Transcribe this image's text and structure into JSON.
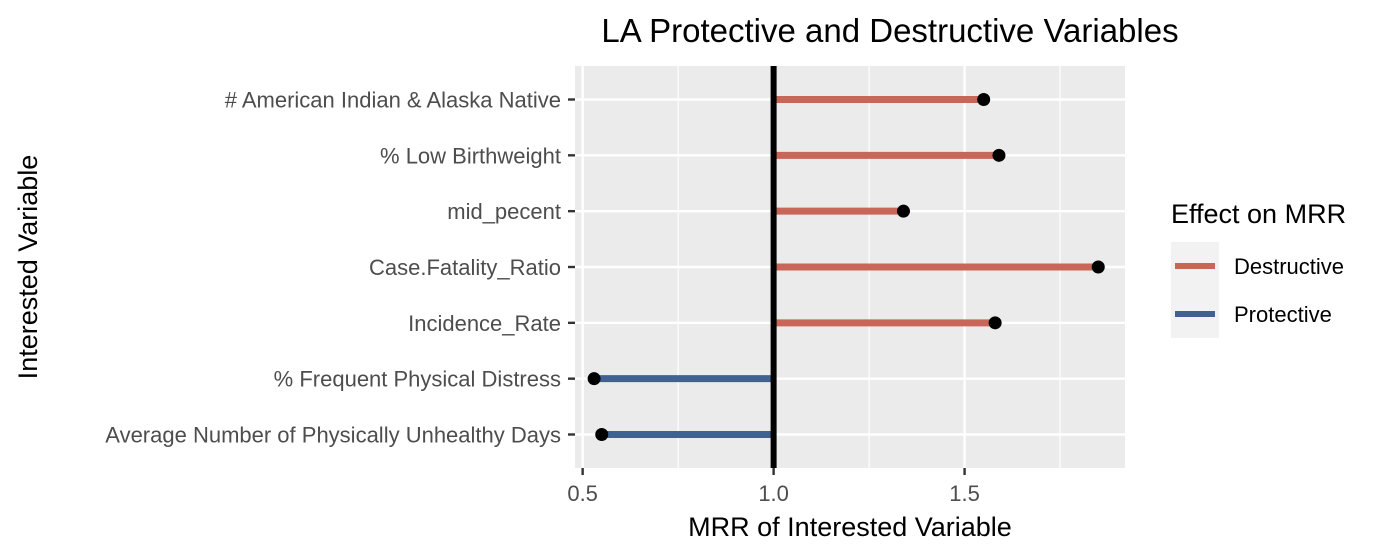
{
  "chart_data": {
    "type": "lollipop",
    "title": "LA Protective and Destructive Variables",
    "xlabel": "MRR of Interested Variable",
    "ylabel": "Interested Variable",
    "xlim": [
      0.48,
      1.92
    ],
    "xticks": [
      0.5,
      1.0,
      1.5
    ],
    "xtick_labels": [
      "0.5",
      "1.0",
      "1.5"
    ],
    "reference_line": 1.0,
    "grid": true,
    "legend": {
      "title": "Effect on MRR",
      "position": "right",
      "entries": [
        {
          "label": "Destructive",
          "color": "#c8665a"
        },
        {
          "label": "Protective",
          "color": "#41628f"
        }
      ]
    },
    "categories": [
      "# American Indian & Alaska Native",
      "% Low Birthweight",
      "mid_pecent",
      "Case.Fatality_Ratio",
      "Incidence_Rate",
      "% Frequent Physical Distress",
      "Average Number of Physically Unhealthy Days"
    ],
    "values": [
      1.55,
      1.59,
      1.34,
      1.85,
      1.58,
      0.53,
      0.55
    ],
    "effects": [
      "Destructive",
      "Destructive",
      "Destructive",
      "Destructive",
      "Destructive",
      "Protective",
      "Protective"
    ]
  }
}
